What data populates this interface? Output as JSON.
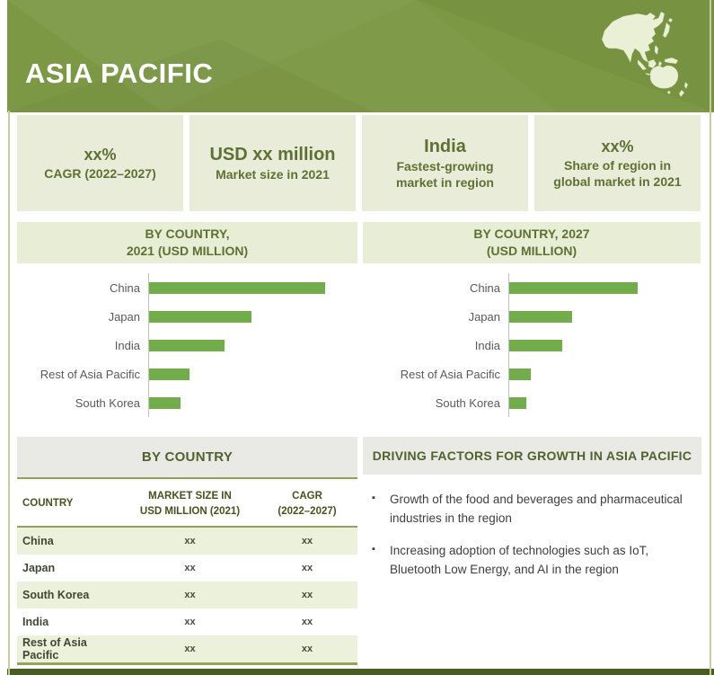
{
  "banner": {
    "title": "ASIA PACIFIC"
  },
  "icons": {
    "map": "asia-pacific-map-icon"
  },
  "colors": {
    "banner_green": "#7c9844",
    "bar_green": "#72ac4b",
    "card_bg": "#e9ecd8",
    "chart_header_bg": "#e8eed6",
    "panel_header_bg": "#e9e9e6",
    "table_rule": "#94a35b",
    "table_alt_row": "#ecf1dc",
    "dark_footer": "#475e20",
    "accent_text": "#5e7033"
  },
  "stats": [
    {
      "line1": "xx%",
      "line2": "CAGR (2022–2027)"
    },
    {
      "line1": "USD xx million",
      "line2": "Market size in 2021"
    },
    {
      "line1": "India",
      "line2": "Fastest-growing market in region"
    },
    {
      "line1": "xx%",
      "line2": "Share of region in global market in 2021"
    }
  ],
  "chart_data": [
    {
      "type": "bar",
      "orientation": "horizontal",
      "title": "BY COUNTRY, 2021 (USD MILLION)",
      "title_line1": "BY COUNTRY,",
      "title_line2": "2021 (USD MILLION)",
      "categories": [
        "China",
        "Japan",
        "India",
        "Rest of Asia Pacific",
        "South Korea"
      ],
      "values_relative": [
        100,
        58,
        43,
        23,
        18
      ],
      "value_note": "axis unlabeled in source; values are relative bar lengths (China = 100)",
      "bar_color": "#72ac4b",
      "grid": false,
      "legend": false
    },
    {
      "type": "bar",
      "orientation": "horizontal",
      "title": "BY COUNTRY, 2027 (USD MILLION)",
      "title_line1": "BY COUNTRY, 2027",
      "title_line2": "(USD MILLION)",
      "categories": [
        "China",
        "Japan",
        "India",
        "Rest of Asia Pacific",
        "South Korea"
      ],
      "values_relative": [
        100,
        49,
        41,
        17,
        13
      ],
      "value_note": "axis unlabeled in source; values are relative bar lengths (China = 100)",
      "bar_color": "#72ac4b",
      "grid": false,
      "legend": false
    }
  ],
  "table": {
    "title": "BY COUNTRY",
    "columns": [
      {
        "label": "COUNTRY"
      },
      {
        "label": "MARKET SIZE IN\nUSD MILLION (2021)"
      },
      {
        "label": "CAGR\n(2022–2027)"
      }
    ],
    "rows": [
      {
        "country": "China",
        "market_size": "xx",
        "cagr": "xx"
      },
      {
        "country": "Japan",
        "market_size": "xx",
        "cagr": "xx"
      },
      {
        "country": "South Korea",
        "market_size": "xx",
        "cagr": "xx"
      },
      {
        "country": "India",
        "market_size": "xx",
        "cagr": "xx"
      },
      {
        "country": "Rest of Asia Pacific",
        "market_size": "xx",
        "cagr": "xx"
      }
    ]
  },
  "driving_factors": {
    "title": "DRIVING FACTORS FOR GROWTH IN ASIA PACIFIC",
    "bullets": [
      "Growth of the food and beverages and pharmaceutical industries in the region",
      "Increasing adoption of technologies such as IoT, Bluetooth Low Energy, and AI in the region"
    ]
  }
}
